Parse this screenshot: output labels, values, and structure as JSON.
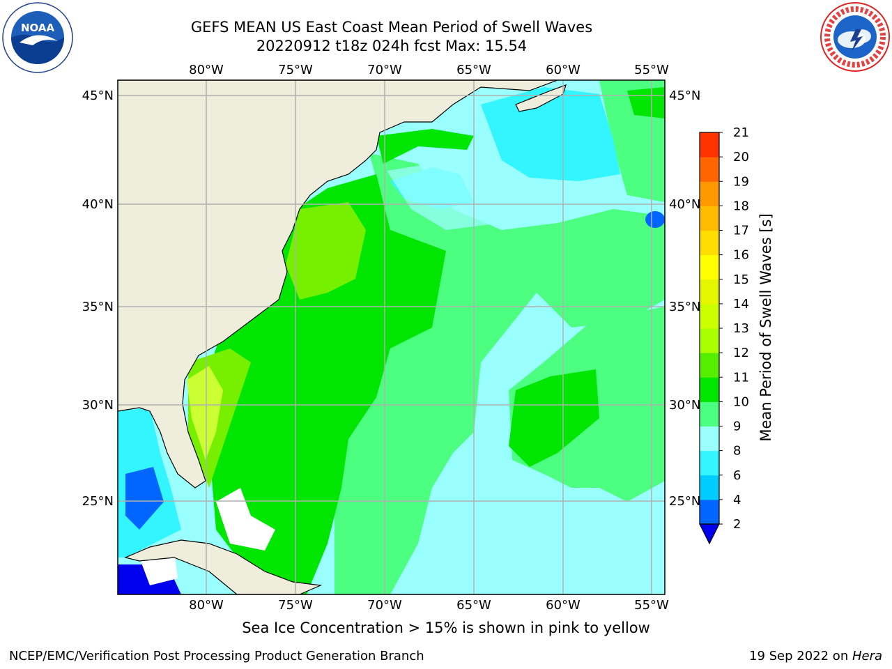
{
  "title": {
    "line1": "GEFS MEAN US East Coast Mean Period of Swell Waves",
    "line2": "20220912 t18z 024h fcst   Max: 15.54"
  },
  "map": {
    "lon_labels": [
      "80°W",
      "75°W",
      "70°W",
      "65°W",
      "60°W",
      "55°W"
    ],
    "lat_labels": [
      "45°N",
      "40°N",
      "35°N",
      "30°N",
      "25°N"
    ],
    "gridlines": true
  },
  "colorbar": {
    "label": "Mean Period of Swell Waves [s]",
    "ticks": [
      "2",
      "4",
      "6",
      "8",
      "9",
      "10",
      "11",
      "12",
      "13",
      "14",
      "15",
      "16",
      "17",
      "18",
      "19",
      "20",
      "21"
    ],
    "colors": [
      "#0066ff",
      "#00ccff",
      "#33f5ff",
      "#99ffff",
      "#4dff80",
      "#00e600",
      "#55ee00",
      "#aaff00",
      "#ccff00",
      "#e6f500",
      "#ffff00",
      "#ffdd00",
      "#ffbb00",
      "#ff9900",
      "#ff6600",
      "#ff3300"
    ],
    "under_color": "#0000ee",
    "extend": "min"
  },
  "caption": "Sea Ice Concentration > 15% is shown in pink to yellow",
  "footer": {
    "left": "NCEP/EMC/Verification Post Processing Product Generation Branch",
    "date": "19 Sep 2022 on ",
    "host": "Hera"
  },
  "logos": {
    "noara_text": "NOAA",
    "nws_text": "NATIONAL WEATHER SERVICE"
  },
  "colors": {
    "land": "#efeedd",
    "grid": "#b0b0b0",
    "ice_free_sea": "#ffffff"
  }
}
